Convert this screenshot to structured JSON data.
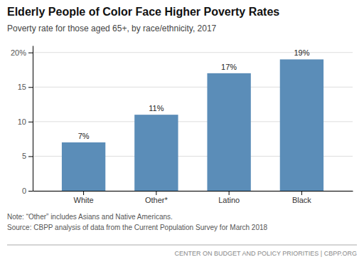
{
  "chart_data": {
    "type": "bar",
    "title": "Elderly People of Color Face Higher Poverty Rates",
    "subtitle": "Poverty rate for those aged 65+, by race/ethnicity, 2017",
    "categories": [
      "White",
      "Other*",
      "Latino",
      "Black"
    ],
    "values": [
      7,
      11,
      17,
      19
    ],
    "value_labels": [
      "7%",
      "11%",
      "17%",
      "19%"
    ],
    "data_labels": true,
    "color": "#5b8db8",
    "ylim": [
      0,
      21
    ],
    "yticks": [
      0,
      5,
      10,
      15,
      {
        "value": 20,
        "label": "20%"
      }
    ],
    "grid": true,
    "notes": [
      "Note: “Other” includes Asians and Native Americans.",
      "Source: CBPP analysis of data from the Current Population Survey for March 2018"
    ],
    "footer": "CENTER ON BUDGET AND POLICY PRIORITIES | CBPP.ORG"
  }
}
